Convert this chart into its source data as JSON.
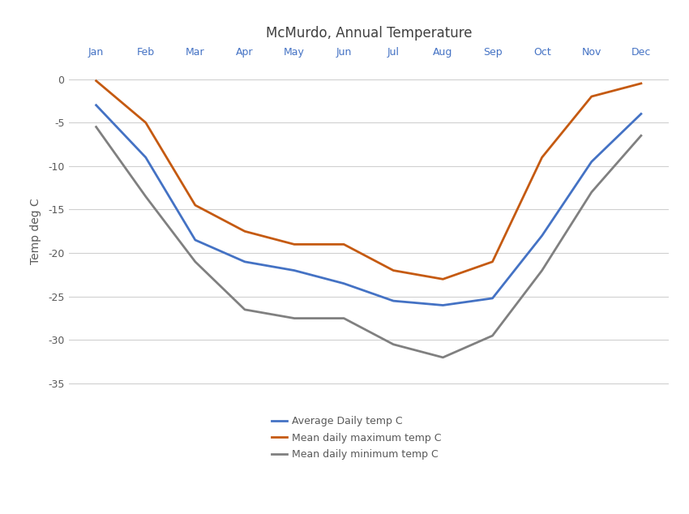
{
  "title": "McMurdo, Annual Temperature",
  "ylabel": "Temp deg C",
  "months": [
    "Jan",
    "Feb",
    "Mar",
    "Apr",
    "May",
    "Jun",
    "Jul",
    "Aug",
    "Sep",
    "Oct",
    "Nov",
    "Dec"
  ],
  "avg_daily": [
    -3.0,
    -9.0,
    -18.5,
    -21.0,
    -22.0,
    -23.5,
    -25.5,
    -26.0,
    -25.2,
    -18.0,
    -9.5,
    -4.0
  ],
  "mean_max": [
    -0.2,
    -5.0,
    -14.5,
    -17.5,
    -19.0,
    -19.0,
    -22.0,
    -23.0,
    -21.0,
    -9.0,
    -2.0,
    -0.5
  ],
  "mean_min": [
    -5.5,
    -13.5,
    -21.0,
    -26.5,
    -27.5,
    -27.5,
    -30.5,
    -32.0,
    -29.5,
    -22.0,
    -13.0,
    -6.5
  ],
  "avg_color": "#4472C4",
  "max_color": "#C55A11",
  "min_color": "#808080",
  "ylim": [
    -37,
    2
  ],
  "yticks": [
    0,
    -5,
    -10,
    -15,
    -20,
    -25,
    -30,
    -35
  ],
  "legend_labels": [
    "Average Daily temp C",
    "Mean daily maximum temp C",
    "Mean daily minimum temp C"
  ],
  "bg_color": "#FFFFFF",
  "grid_color": "#D0D0D0",
  "title_fontsize": 12,
  "axis_label_fontsize": 10,
  "tick_fontsize": 9,
  "legend_fontsize": 9,
  "line_width": 2.0
}
